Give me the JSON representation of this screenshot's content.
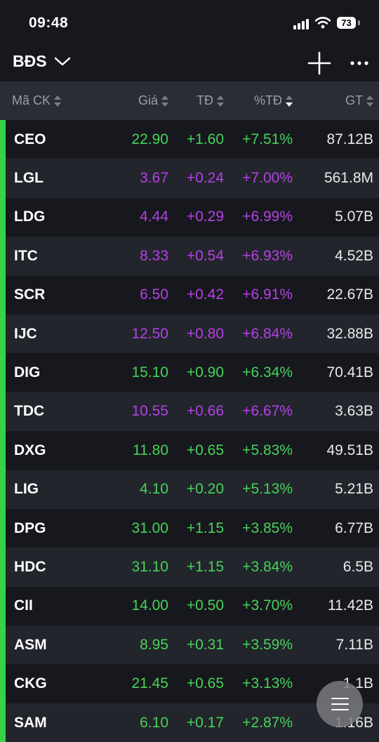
{
  "status_bar": {
    "time": "09:48",
    "battery": "73"
  },
  "nav": {
    "title": "BĐS"
  },
  "header": {
    "symbol": "Mã CK",
    "price": "Giá",
    "change": "TĐ",
    "pct": "%TĐ",
    "value": "GT"
  },
  "colors": {
    "up": "#46d35a",
    "ceiling": "#b540e6",
    "bar": "#34d34a"
  },
  "rows": [
    {
      "symbol": "CEO",
      "price": "22.90",
      "change": "+1.60",
      "pct": "+7.51%",
      "value": "87.12B",
      "color": "green"
    },
    {
      "symbol": "LGL",
      "price": "3.67",
      "change": "+0.24",
      "pct": "+7.00%",
      "value": "561.8M",
      "color": "purple"
    },
    {
      "symbol": "LDG",
      "price": "4.44",
      "change": "+0.29",
      "pct": "+6.99%",
      "value": "5.07B",
      "color": "purple"
    },
    {
      "symbol": "ITC",
      "price": "8.33",
      "change": "+0.54",
      "pct": "+6.93%",
      "value": "4.52B",
      "color": "purple"
    },
    {
      "symbol": "SCR",
      "price": "6.50",
      "change": "+0.42",
      "pct": "+6.91%",
      "value": "22.67B",
      "color": "purple"
    },
    {
      "symbol": "IJC",
      "price": "12.50",
      "change": "+0.80",
      "pct": "+6.84%",
      "value": "32.88B",
      "color": "purple"
    },
    {
      "symbol": "DIG",
      "price": "15.10",
      "change": "+0.90",
      "pct": "+6.34%",
      "value": "70.41B",
      "color": "green"
    },
    {
      "symbol": "TDC",
      "price": "10.55",
      "change": "+0.66",
      "pct": "+6.67%",
      "value": "3.63B",
      "color": "purple"
    },
    {
      "symbol": "DXG",
      "price": "11.80",
      "change": "+0.65",
      "pct": "+5.83%",
      "value": "49.51B",
      "color": "green"
    },
    {
      "symbol": "LIG",
      "price": "4.10",
      "change": "+0.20",
      "pct": "+5.13%",
      "value": "5.21B",
      "color": "green"
    },
    {
      "symbol": "DPG",
      "price": "31.00",
      "change": "+1.15",
      "pct": "+3.85%",
      "value": "6.77B",
      "color": "green"
    },
    {
      "symbol": "HDC",
      "price": "31.10",
      "change": "+1.15",
      "pct": "+3.84%",
      "value": "6.5B",
      "color": "green"
    },
    {
      "symbol": "CII",
      "price": "14.00",
      "change": "+0.50",
      "pct": "+3.70%",
      "value": "11.42B",
      "color": "green"
    },
    {
      "symbol": "ASM",
      "price": "8.95",
      "change": "+0.31",
      "pct": "+3.59%",
      "value": "7.11B",
      "color": "green"
    },
    {
      "symbol": "CKG",
      "price": "21.45",
      "change": "+0.65",
      "pct": "+3.13%",
      "value": "1.1B",
      "color": "green"
    },
    {
      "symbol": "SAM",
      "price": "6.10",
      "change": "+0.17",
      "pct": "+2.87%",
      "value": "1.16B",
      "color": "green"
    }
  ]
}
